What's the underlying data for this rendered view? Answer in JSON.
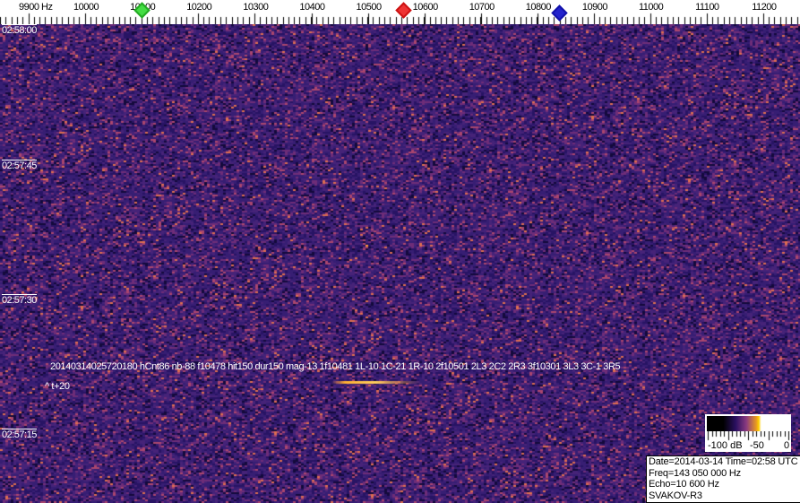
{
  "frequency_scale": {
    "unit_label": "9900 Hz",
    "labels": [
      "10000",
      "10100",
      "10200",
      "10300",
      "10400",
      "10500",
      "10600",
      "10700",
      "10800",
      "10900",
      "11000",
      "11100",
      "11200"
    ],
    "markers": [
      {
        "name": "green",
        "color": "#22cc22",
        "freq_hz": 10100
      },
      {
        "name": "red",
        "color": "#dd2222",
        "freq_hz": 10560
      },
      {
        "name": "blue",
        "color": "#1111cc",
        "freq_hz": 10835
      }
    ]
  },
  "time_labels": [
    "02:58:00",
    "02:57:45",
    "02:57:30",
    "02:57:15"
  ],
  "detection": {
    "line": "20140314025720180 hCnt86 nb-88 f10478 hit150 dur150 mag-13 1f10481 1L-10 1C-21 1R-10 2f10501 2L3 2C2 2R3 3f10301 3L3 3C-1 3R5",
    "offset": "^ t+20"
  },
  "colorbar": {
    "labels": [
      "-100 dB",
      "-50",
      "0"
    ]
  },
  "info": {
    "date_time": "Date=2014-03-14 Time=02:58 UTC",
    "freq": "Freq=143 050 000 Hz",
    "echo": "Echo=10 600 Hz",
    "station": "SVAKOV-R3"
  },
  "colors": {
    "background": "#3b2070",
    "echo": "#ffc040"
  }
}
